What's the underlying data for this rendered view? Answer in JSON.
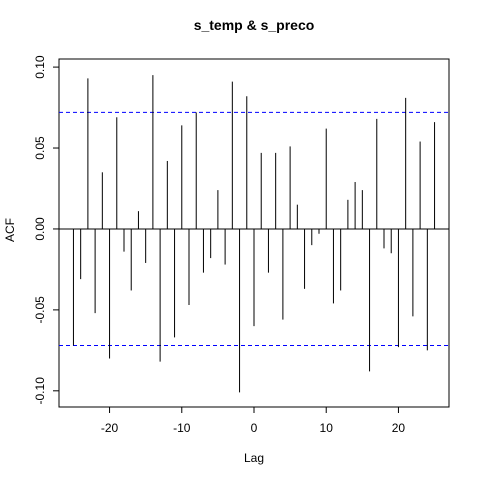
{
  "chart_data": {
    "type": "bar",
    "title": "s_temp & s_preco",
    "xlabel": "Lag",
    "ylabel": "ACF",
    "xlim": [
      -27,
      27
    ],
    "ylim": [
      -0.11,
      0.105
    ],
    "x_ticks": [
      -20,
      -10,
      0,
      10,
      20
    ],
    "x_tick_labels": [
      "-20",
      "-10",
      "0",
      "10",
      "20"
    ],
    "y_ticks": [
      -0.1,
      -0.05,
      0.0,
      0.05,
      0.1
    ],
    "y_tick_labels": [
      "-0.10",
      "-0.05",
      "0.00",
      "0.05",
      "0.10"
    ],
    "confidence_band": [
      0.072,
      -0.072
    ],
    "lags": [
      -25,
      -24,
      -23,
      -22,
      -21,
      -20,
      -19,
      -18,
      -17,
      -16,
      -15,
      -14,
      -13,
      -12,
      -11,
      -10,
      -9,
      -8,
      -7,
      -6,
      -5,
      -4,
      -3,
      -2,
      -1,
      0,
      1,
      2,
      3,
      4,
      5,
      6,
      7,
      8,
      9,
      10,
      11,
      12,
      13,
      14,
      15,
      16,
      17,
      18,
      19,
      20,
      21,
      22,
      23,
      24,
      25
    ],
    "values": [
      -0.072,
      -0.031,
      0.093,
      -0.052,
      0.035,
      -0.08,
      0.069,
      -0.014,
      -0.038,
      0.011,
      -0.021,
      0.095,
      -0.082,
      0.042,
      -0.067,
      0.064,
      -0.047,
      0.072,
      -0.027,
      -0.018,
      0.024,
      -0.022,
      0.091,
      -0.101,
      0.082,
      -0.06,
      0.047,
      -0.027,
      0.047,
      -0.056,
      0.051,
      0.015,
      -0.037,
      -0.01,
      -0.003,
      0.062,
      -0.046,
      -0.038,
      0.018,
      0.029,
      0.024,
      -0.088,
      0.068,
      -0.012,
      -0.015,
      -0.073,
      0.081,
      -0.054,
      0.054,
      -0.075,
      0.066
    ],
    "colors": {
      "bars": "#000000",
      "confidence": "#0000ff",
      "zero_line": "#000000",
      "frame": "#000000"
    },
    "grid": false
  }
}
